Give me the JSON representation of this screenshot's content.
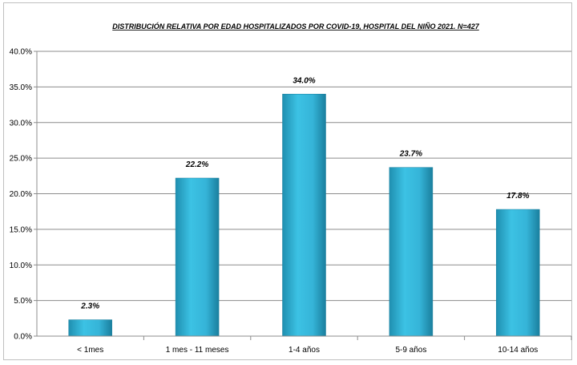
{
  "chart_data": {
    "type": "bar",
    "title": "DISTRIBUCIÓN RELATIVA POR EDAD HOSPITALIZADOS POR COVID-19, HOSPITAL DEL NIÑO 2021. N=427",
    "categories": [
      "< 1mes",
      "1 mes - 11 meses",
      "1-4 años",
      "5-9 años",
      "10-14 años"
    ],
    "values": [
      2.3,
      22.2,
      34.0,
      23.7,
      17.8
    ],
    "data_labels": [
      "2.3%",
      "22.2%",
      "34.0%",
      "23.7%",
      "17.8%"
    ],
    "y_ticks": [
      "0.0%",
      "5.0%",
      "10.0%",
      "15.0%",
      "20.0%",
      "25.0%",
      "30.0%",
      "35.0%",
      "40.0%"
    ],
    "ylim": [
      0,
      40
    ],
    "xlabel": "",
    "ylabel": "",
    "grid": true,
    "legend": "none",
    "bar_color": "#2fb3d6"
  }
}
